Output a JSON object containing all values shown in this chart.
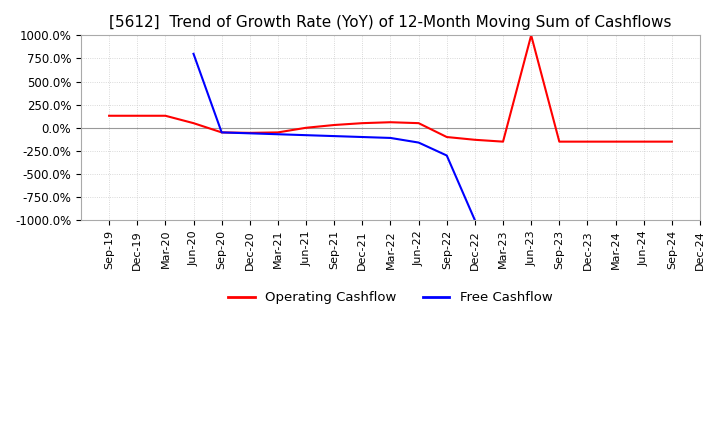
{
  "title": "[5612]  Trend of Growth Rate (YoY) of 12-Month Moving Sum of Cashflows",
  "title_fontsize": 11,
  "ylim": [
    -1000,
    1000
  ],
  "yticks": [
    1000,
    750,
    500,
    250,
    0,
    -250,
    -500,
    -750,
    -1000
  ],
  "ytick_labels": [
    "1000.0%",
    "750.0%",
    "500.0%",
    "250.0%",
    "0.0%",
    "-250.0%",
    "-500.0%",
    "-750.0%",
    "-1000.0%"
  ],
  "background_color": "#ffffff",
  "plot_bg_color": "#ffffff",
  "grid_color": "#cccccc",
  "operating_color": "#ff0000",
  "free_color": "#0000ff",
  "legend_labels": [
    "Operating Cashflow",
    "Free Cashflow"
  ],
  "x_labels": [
    "Sep-19",
    "Dec-19",
    "Mar-20",
    "Jun-20",
    "Sep-20",
    "Dec-20",
    "Mar-21",
    "Jun-21",
    "Sep-21",
    "Dec-21",
    "Mar-22",
    "Jun-22",
    "Sep-22",
    "Dec-22",
    "Mar-23",
    "Jun-23",
    "Sep-23",
    "Dec-23",
    "Mar-24",
    "Jun-24",
    "Sep-24",
    "Dec-24"
  ],
  "operating_cashflow": [
    130,
    130,
    130,
    50,
    -50,
    -55,
    -50,
    0,
    30,
    50,
    60,
    50,
    -100,
    -130,
    -150,
    1000,
    -150,
    -150,
    -150,
    -150,
    -150,
    null
  ],
  "free_cashflow": [
    null,
    null,
    null,
    800,
    -50,
    -60,
    -70,
    -80,
    -90,
    -100,
    -110,
    -160,
    -300,
    -1000,
    null,
    null,
    null,
    null,
    null,
    null,
    null,
    null
  ]
}
